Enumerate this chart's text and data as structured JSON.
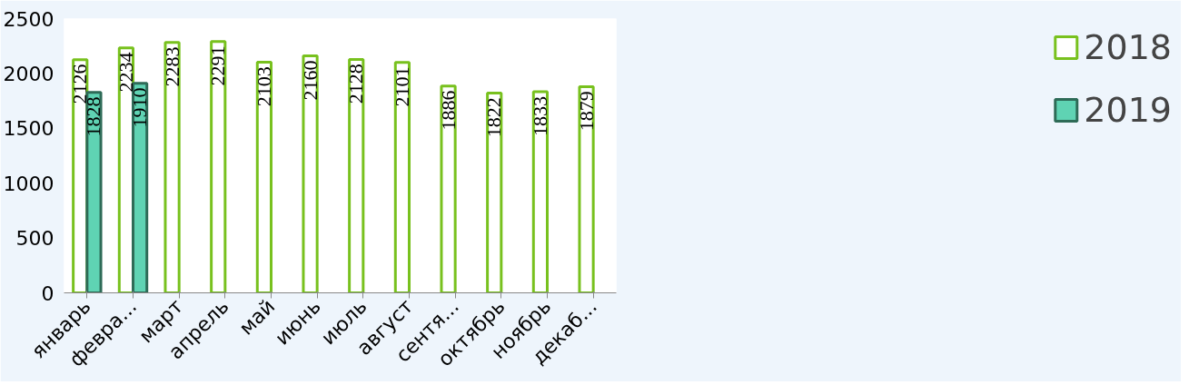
{
  "chart_data": {
    "type": "bar",
    "categories": [
      "январь",
      "февра...",
      "март",
      "апрель",
      "май",
      "июнь",
      "июль",
      "август",
      "сентя...",
      "октябрь",
      "ноябрь",
      "декаб..."
    ],
    "series": [
      {
        "name": "2018",
        "color": "#ffffff",
        "values": [
          2126,
          2234,
          2283,
          2291,
          2103,
          2160,
          2128,
          2101,
          1886,
          1822,
          1833,
          1879
        ]
      },
      {
        "name": "2019",
        "color": "#5fd3b3",
        "values": [
          1828,
          1910,
          null,
          null,
          null,
          null,
          null,
          null,
          null,
          null,
          null,
          null
        ]
      }
    ],
    "ylim": [
      0,
      2500
    ],
    "yticks": [
      0,
      500,
      1000,
      1500,
      2000,
      2500
    ],
    "data_labels": true,
    "legend": "right",
    "grid": false
  }
}
